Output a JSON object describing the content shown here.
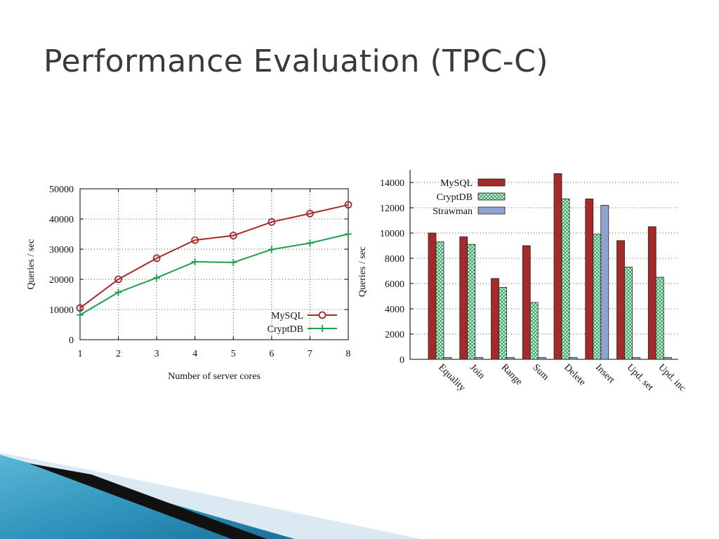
{
  "slide": {
    "title": "Performance Evaluation (TPC-C)",
    "colors": {
      "mysql": "#a52a2a",
      "cryptdb": "#1e9e50",
      "strawman": "#8fa3d0",
      "title": "#3a3a3a"
    }
  },
  "chart_data": [
    {
      "type": "line",
      "title": "",
      "xlabel": "Number of server cores",
      "ylabel": "Queries / sec",
      "x": [
        1,
        2,
        3,
        4,
        5,
        6,
        7,
        8
      ],
      "xlim": [
        1,
        8
      ],
      "ylim": [
        0,
        50000
      ],
      "yticks": [
        0,
        10000,
        20000,
        30000,
        40000,
        50000
      ],
      "grid": true,
      "legend": "bottom-right",
      "series": [
        {
          "name": "MySQL",
          "marker": "circle",
          "color": "#a52a2a",
          "values": [
            10500,
            20000,
            27000,
            33000,
            34500,
            39000,
            41800,
            44700
          ]
        },
        {
          "name": "CryptDB",
          "marker": "plus",
          "color": "#1e9e50",
          "values": [
            8200,
            15700,
            20500,
            25800,
            25600,
            29900,
            32000,
            35000
          ]
        }
      ]
    },
    {
      "type": "bar",
      "title": "",
      "xlabel": "",
      "ylabel": "Queries / sec",
      "categories": [
        "Equality",
        "Join",
        "Range",
        "Sum",
        "Delete",
        "Insert",
        "Upd. set",
        "Upd. inc"
      ],
      "ylim": [
        0,
        15000
      ],
      "yticks": [
        0,
        2000,
        4000,
        6000,
        8000,
        10000,
        12000,
        14000
      ],
      "grid": true,
      "legend": "top-left",
      "series": [
        {
          "name": "MySQL",
          "pattern": "solid",
          "color": "#a52a2a",
          "values": [
            10000,
            9700,
            6400,
            9000,
            14700,
            12700,
            9400,
            10500
          ]
        },
        {
          "name": "CryptDB",
          "pattern": "crosshatch",
          "color": "#1e9e50",
          "values": [
            9300,
            9100,
            5700,
            4500,
            12700,
            9900,
            7300,
            6500
          ]
        },
        {
          "name": "Strawman",
          "pattern": "solid",
          "color": "#8fa3d0",
          "values": [
            150,
            150,
            150,
            150,
            150,
            12200,
            150,
            150
          ]
        }
      ]
    }
  ]
}
